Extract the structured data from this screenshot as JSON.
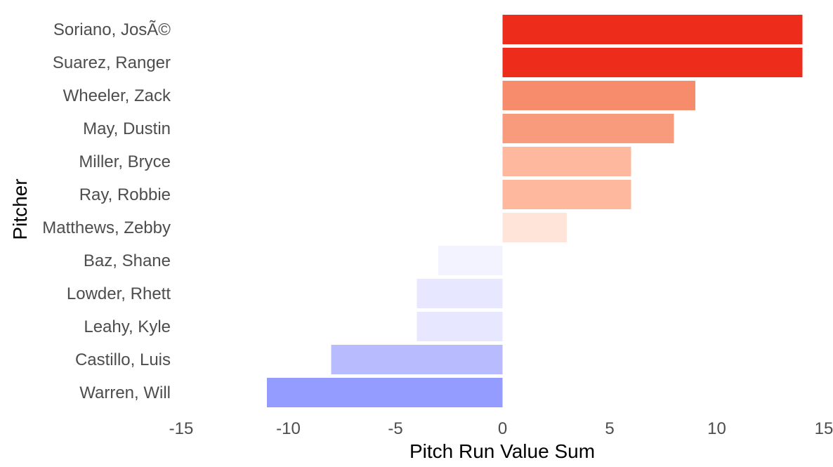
{
  "chart_data": {
    "type": "bar",
    "orientation": "horizontal",
    "title": "",
    "xlabel": "Pitch Run Value Sum",
    "ylabel": "Pitcher",
    "xlim": [
      -15,
      15
    ],
    "x_ticks": [
      -15,
      -10,
      -5,
      0,
      5,
      10,
      15
    ],
    "grid": false,
    "legend": "none",
    "categories": [
      "Soriano, JosÃ©",
      "Suarez, Ranger",
      "Wheeler, Zack",
      "May, Dustin",
      "Miller, Bryce",
      "Ray, Robbie",
      "Matthews, Zebby",
      "Baz, Shane",
      "Lowder, Rhett",
      "Leahy, Kyle",
      "Castillo, Luis",
      "Warren, Will"
    ],
    "values": [
      14,
      14,
      9,
      8,
      6,
      6,
      3,
      -3,
      -4,
      -4,
      -8,
      -11
    ],
    "colors": [
      "#ee2c1b",
      "#ee2c1b",
      "#f78c6c",
      "#f89b7d",
      "#fdb89d",
      "#fdb89d",
      "#ffe5d9",
      "#f3f3ff",
      "#e7e7ff",
      "#e7e7ff",
      "#b8bcff",
      "#949dff"
    ]
  }
}
